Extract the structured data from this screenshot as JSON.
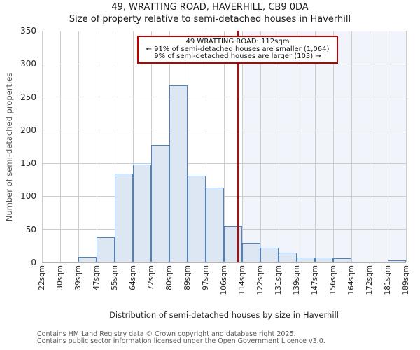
{
  "page": {
    "title": "49, WRATTING ROAD, HAVERHILL, CB9 0DA",
    "subtitle": "Size of property relative to semi-detached houses in Haverhill",
    "footer_line1": "Contains HM Land Registry data © Crown copyright and database right 2025.",
    "footer_line2": "Contains public sector information licensed under the Open Government Licence v3.0."
  },
  "annotation": {
    "line1": "49 WRATTING ROAD: 112sqm",
    "line2": "← 91% of semi-detached houses are smaller (1,064)",
    "line3": "9% of semi-detached houses are larger (103) →"
  },
  "chart_data": {
    "type": "bar",
    "title": "49, WRATTING ROAD, HAVERHILL, CB9 0DA",
    "subtitle": "Size of property relative to semi-detached houses in Haverhill",
    "xlabel": "Distribution of semi-detached houses by size in Haverhill",
    "ylabel": "Number of semi-detached properties",
    "bin_edges_sqm": [
      22,
      30,
      39,
      47,
      55,
      64,
      72,
      80,
      89,
      97,
      106,
      114,
      122,
      131,
      139,
      147,
      156,
      164,
      172,
      181,
      189
    ],
    "x_tick_labels": [
      "22sqm",
      "30sqm",
      "39sqm",
      "47sqm",
      "55sqm",
      "64sqm",
      "72sqm",
      "80sqm",
      "89sqm",
      "97sqm",
      "106sqm",
      "114sqm",
      "122sqm",
      "131sqm",
      "139sqm",
      "147sqm",
      "156sqm",
      "164sqm",
      "172sqm",
      "181sqm",
      "189sqm"
    ],
    "values": [
      1,
      1,
      9,
      38,
      134,
      148,
      178,
      268,
      131,
      113,
      55,
      30,
      22,
      15,
      7,
      7,
      6,
      0,
      0,
      3
    ],
    "y_ticks": [
      0,
      50,
      100,
      150,
      200,
      250,
      300,
      350
    ],
    "ylim": [
      0,
      350
    ],
    "grid": true,
    "legend": "none",
    "marker_value_sqm": 112,
    "shade_from_sqm": 114,
    "colors": {
      "bar_fill": "#dde7f4",
      "bar_edge": "#4f81bd",
      "marker_line": "#cc0000",
      "annotation_border": "#bb0000",
      "shade": "#f2f4fb",
      "gridline": "#cccccc"
    }
  }
}
